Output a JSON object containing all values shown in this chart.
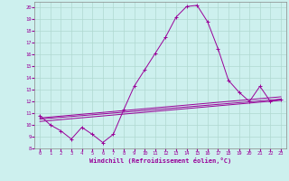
{
  "xlabel": "Windchill (Refroidissement éolien,°C)",
  "bg_color": "#cdf0ee",
  "grid_color": "#b0d8d0",
  "line_color": "#990099",
  "xlim": [
    -0.5,
    23.5
  ],
  "ylim": [
    8,
    20.5
  ],
  "xticks": [
    0,
    1,
    2,
    3,
    4,
    5,
    6,
    7,
    8,
    9,
    10,
    11,
    12,
    13,
    14,
    15,
    16,
    17,
    18,
    19,
    20,
    21,
    22,
    23
  ],
  "yticks": [
    8,
    9,
    10,
    11,
    12,
    13,
    14,
    15,
    16,
    17,
    18,
    19,
    20
  ],
  "line1_x": [
    0,
    1,
    2,
    3,
    4,
    5,
    6,
    7,
    8,
    9,
    10,
    11,
    12,
    13,
    14,
    15,
    16,
    17,
    18,
    19,
    20,
    21,
    22,
    23
  ],
  "line1_y": [
    10.8,
    10.0,
    9.5,
    8.8,
    9.8,
    9.2,
    8.5,
    9.2,
    11.3,
    13.3,
    14.7,
    16.1,
    17.5,
    19.2,
    20.1,
    20.2,
    18.8,
    16.5,
    13.8,
    12.8,
    12.0,
    13.3,
    12.0,
    12.2
  ],
  "line2_x": [
    0,
    23
  ],
  "line2_y": [
    10.5,
    12.2
  ],
  "line3_x": [
    0,
    23
  ],
  "line3_y": [
    10.3,
    12.1
  ],
  "line4_x": [
    0,
    23
  ],
  "line4_y": [
    10.6,
    12.4
  ]
}
